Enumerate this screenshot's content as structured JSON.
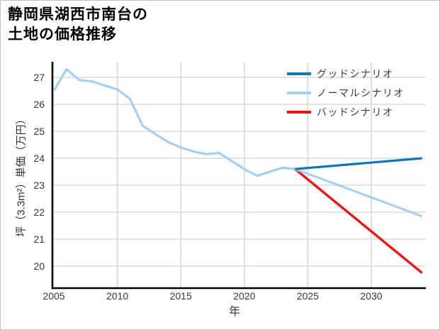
{
  "page": {
    "title_lines": [
      "静岡県湖西市南台の",
      "土地の価格推移"
    ]
  },
  "chart_data": {
    "type": "line",
    "title": "静岡県湖西市南台の土地の価格推移",
    "xlabel": "年",
    "ylabel": "坪（3.3m²）単価（万円）",
    "xlim": [
      2004.9,
      2034.3
    ],
    "ylim": [
      19.2,
      27.55
    ],
    "x_ticks": [
      2005,
      2010,
      2015,
      2020,
      2025,
      2030
    ],
    "y_ticks": [
      20,
      21,
      22,
      23,
      24,
      25,
      26,
      27
    ],
    "grid": true,
    "legend_position": "upper right",
    "style": {
      "grid_color": "#d8d8d8",
      "axis_color": "#000000",
      "tick_label_color": "#383838",
      "background": "#ffffff"
    },
    "series": [
      {
        "key": "good",
        "name": "グッドシナリオ",
        "color": "#1273bc",
        "width": 3.2,
        "in_legend": true,
        "x": [
          2024,
          2034
        ],
        "y": [
          23.6,
          24.0
        ]
      },
      {
        "key": "normal",
        "name": "ノーマルシナリオ",
        "color": "#a6d0f3",
        "width": 3.2,
        "in_legend": true,
        "x": [
          2024,
          2034
        ],
        "y": [
          23.6,
          21.85
        ]
      },
      {
        "key": "bad",
        "name": "バッドシナリオ",
        "color": "#f11212",
        "width": 3.4,
        "in_legend": true,
        "x": [
          2024,
          2034
        ],
        "y": [
          23.6,
          19.75
        ]
      },
      {
        "key": "history",
        "name": "",
        "color": "#a6d0f3",
        "width": 3.3,
        "in_legend": false,
        "x": [
          2005,
          2006,
          2007,
          2008,
          2009,
          2010,
          2011,
          2012,
          2013,
          2014,
          2015,
          2016,
          2017,
          2018,
          2019,
          2020,
          2021,
          2022,
          2023,
          2024
        ],
        "y": [
          26.5,
          27.3,
          26.9,
          26.85,
          26.7,
          26.55,
          26.2,
          25.2,
          24.9,
          24.6,
          24.4,
          24.25,
          24.15,
          24.2,
          23.9,
          23.6,
          23.35,
          23.5,
          23.65,
          23.6
        ]
      }
    ]
  }
}
